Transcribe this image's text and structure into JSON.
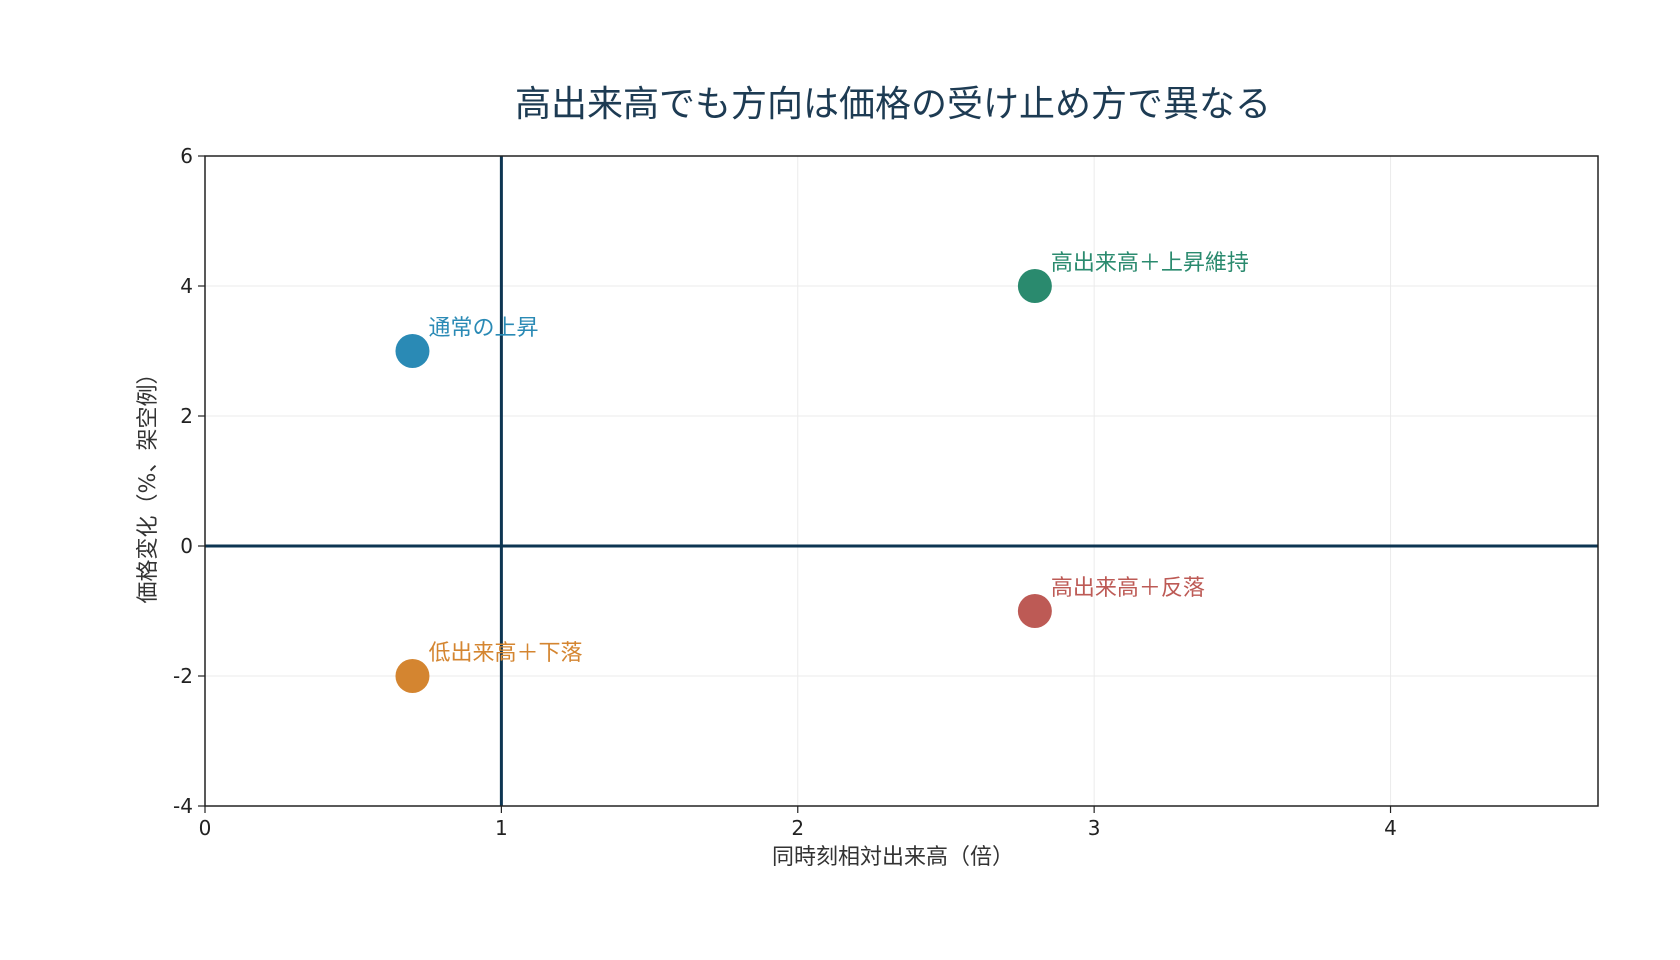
{
  "chart_data": {
    "type": "scatter",
    "title": "高出来高でも方向は価格の受け止め方で異なる",
    "xlabel": "同時刻相対出来高（倍）",
    "ylabel": "価格変化（%、架空例）",
    "xlim": [
      0,
      4.7
    ],
    "ylim": [
      -4,
      6
    ],
    "xticks": [
      0,
      1,
      2,
      3,
      4
    ],
    "yticks": [
      -4,
      -2,
      0,
      2,
      4,
      6
    ],
    "grid": true,
    "reference_lines": {
      "x": 1,
      "y": 0,
      "color": "#0d3552"
    },
    "points": [
      {
        "label": "通常の上昇",
        "x": 0.7,
        "y": 3,
        "color": "#2a8ab5"
      },
      {
        "label": "高出来高＋上昇維持",
        "x": 2.8,
        "y": 4,
        "color": "#2a8a6e"
      },
      {
        "label": "高出来高＋反落",
        "x": 2.8,
        "y": -1,
        "color": "#bd5a55"
      },
      {
        "label": "低出来高＋下落",
        "x": 0.7,
        "y": -2,
        "color": "#d48530"
      }
    ]
  }
}
